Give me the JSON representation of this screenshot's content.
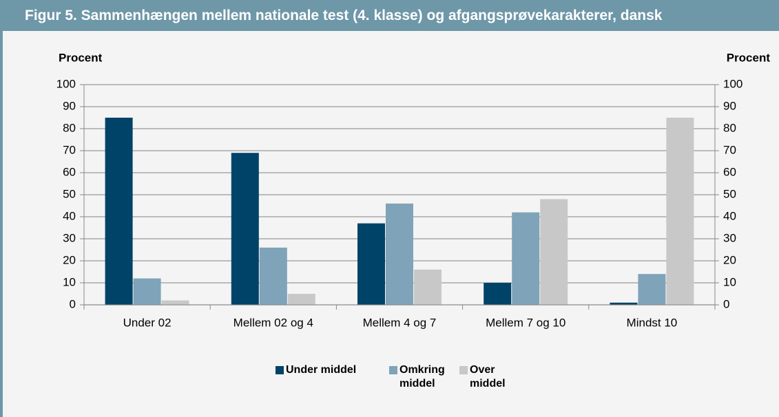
{
  "chart_data": {
    "type": "bar",
    "title": "Figur 5. Sammenhængen mellem nationale test (4. klasse) og afgangsprøvekarakterer, dansk",
    "ylabel": "Procent",
    "y2label": "Procent",
    "categories": [
      "Under 02",
      "Mellem 02 og 4",
      "Mellem 4 og 7",
      "Mellem 7 og 10",
      "Mindst 10"
    ],
    "series": [
      {
        "name": "Under middel",
        "color": "#004368",
        "values": [
          85,
          69,
          37,
          10,
          1
        ]
      },
      {
        "name": "Omkring middel",
        "color": "#7fa3b8",
        "values": [
          12,
          26,
          46,
          42,
          14
        ]
      },
      {
        "name": "Over middel",
        "color": "#c8c8c8",
        "values": [
          2,
          5,
          16,
          48,
          85
        ]
      }
    ],
    "ylim": [
      0,
      100
    ],
    "yticks": [
      0,
      10,
      20,
      30,
      40,
      50,
      60,
      70,
      80,
      90,
      100
    ],
    "y2lim": [
      0,
      100
    ],
    "y2ticks": [
      0,
      10,
      20,
      30,
      40,
      50,
      60,
      70,
      80,
      90,
      100
    ],
    "grid": true,
    "legend": "bottom"
  }
}
